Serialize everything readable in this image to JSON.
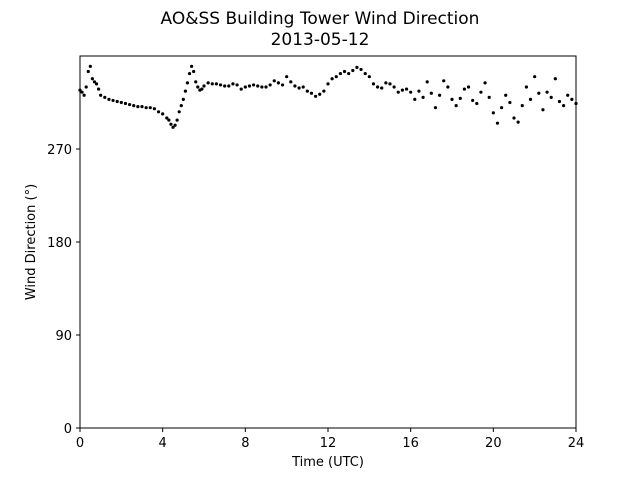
{
  "chart_data": {
    "type": "scatter",
    "title": "AO&SS Building Tower Wind Direction",
    "subtitle": "2013-05-12",
    "xlabel": "Time (UTC)",
    "ylabel": "Wind Direction (°)",
    "xlim": [
      0,
      24
    ],
    "ylim": [
      0,
      360
    ],
    "xticks": [
      0,
      4,
      8,
      12,
      16,
      20,
      24
    ],
    "yticks": [
      0,
      90,
      180,
      270
    ],
    "grid": false,
    "marker_color": "#000000",
    "series": [
      {
        "x": [
          0.0,
          0.1,
          0.2,
          0.3,
          0.4,
          0.5,
          0.6,
          0.7,
          0.8,
          0.9,
          1.0,
          1.2,
          1.4,
          1.6,
          1.8,
          2.0,
          2.2,
          2.4,
          2.6,
          2.8,
          3.0,
          3.2,
          3.4,
          3.6,
          3.8,
          4.0,
          4.2,
          4.3,
          4.4,
          4.5,
          4.6,
          4.7,
          4.8,
          4.9,
          5.0,
          5.1,
          5.2,
          5.3,
          5.4,
          5.5,
          5.6,
          5.7,
          5.8,
          5.9,
          6.0,
          6.2,
          6.4,
          6.6,
          6.8,
          7.0,
          7.2,
          7.4,
          7.6,
          7.8,
          8.0,
          8.2,
          8.4,
          8.6,
          8.8,
          9.0,
          9.2,
          9.4,
          9.6,
          9.8,
          10.0,
          10.2,
          10.4,
          10.6,
          10.8,
          11.0,
          11.2,
          11.4,
          11.6,
          11.8,
          12.0,
          12.2,
          12.4,
          12.6,
          12.8,
          13.0,
          13.2,
          13.4,
          13.6,
          13.8,
          14.0,
          14.2,
          14.4,
          14.6,
          14.8,
          15.0,
          15.2,
          15.4,
          15.6,
          15.8,
          16.0,
          16.2,
          16.4,
          16.6,
          16.8,
          17.0,
          17.2,
          17.4,
          17.6,
          17.8,
          18.0,
          18.2,
          18.4,
          18.6,
          18.8,
          19.0,
          19.2,
          19.4,
          19.6,
          19.8,
          20.0,
          20.2,
          20.4,
          20.6,
          20.8,
          21.0,
          21.2,
          21.4,
          21.6,
          21.8,
          22.0,
          22.2,
          22.4,
          22.6,
          22.8,
          23.0,
          23.2,
          23.4,
          23.6,
          23.8,
          24.0
        ],
        "y": [
          327,
          325,
          322,
          330,
          345,
          350,
          338,
          335,
          333,
          328,
          322,
          320,
          318,
          317,
          316,
          315,
          314,
          313,
          312,
          311,
          311,
          310,
          310,
          309,
          306,
          304,
          300,
          298,
          294,
          291,
          293,
          298,
          306,
          312,
          318,
          326,
          334,
          343,
          350,
          345,
          335,
          330,
          327,
          328,
          331,
          334,
          333,
          333,
          332,
          331,
          331,
          333,
          332,
          328,
          330,
          331,
          332,
          331,
          330,
          330,
          332,
          336,
          334,
          332,
          340,
          335,
          331,
          329,
          330,
          326,
          324,
          321,
          323,
          326,
          333,
          338,
          340,
          343,
          345,
          343,
          346,
          349,
          347,
          343,
          340,
          333,
          330,
          329,
          334,
          333,
          330,
          325,
          327,
          328,
          325,
          318,
          326,
          320,
          335,
          324,
          310,
          322,
          336,
          330,
          318,
          312,
          319,
          328,
          330,
          317,
          314,
          325,
          334,
          320,
          305,
          295,
          310,
          322,
          315,
          300,
          296,
          312,
          330,
          318,
          340,
          324,
          308,
          325,
          320,
          338,
          316,
          312,
          322,
          318,
          314
        ]
      }
    ]
  }
}
